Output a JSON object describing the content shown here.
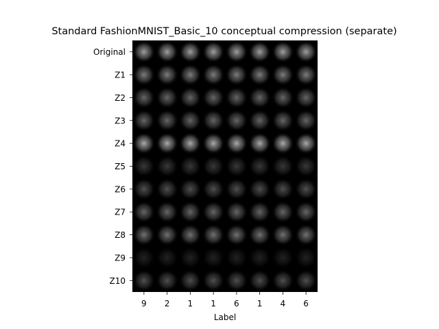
{
  "chart_data": {
    "type": "heatmap",
    "title": "Standard FashionMNIST_Basic_10 conceptual compression (separate)",
    "xlabel": "Label",
    "ylabel": "",
    "columns": [
      "9",
      "2",
      "1",
      "1",
      "6",
      "1",
      "4",
      "6"
    ],
    "rows": [
      "Original",
      "Z1",
      "Z2",
      "Z3",
      "Z4",
      "Z5",
      "Z6",
      "Z7",
      "Z8",
      "Z9",
      "Z10"
    ],
    "row_brightness": [
      0.7,
      0.55,
      0.45,
      0.45,
      0.75,
      0.25,
      0.35,
      0.45,
      0.5,
      0.15,
      0.35
    ],
    "grid": false
  }
}
